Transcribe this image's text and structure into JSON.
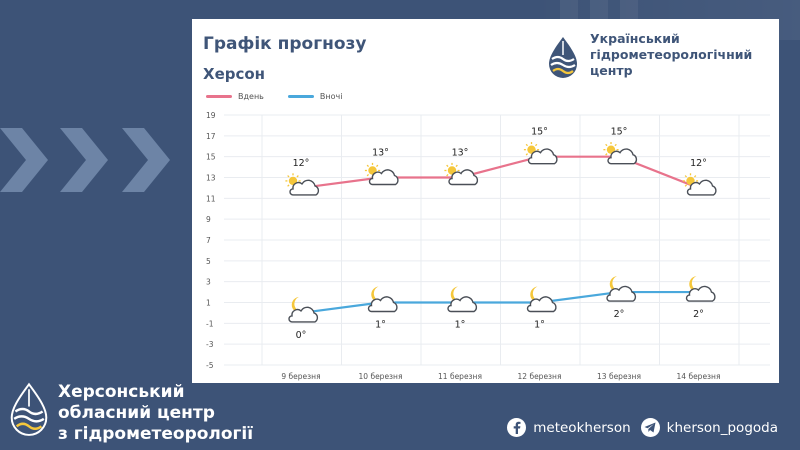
{
  "card": {
    "title": "Графік прогнозу",
    "city": "Херсон",
    "brand_lines": [
      "Український",
      "гідрометеорологічний",
      "центр"
    ]
  },
  "footer": {
    "org_lines": [
      "Херсонський",
      "обласний центр",
      "з гідрометеорології"
    ],
    "facebook": "meteokherson",
    "telegram": "kherson_pogoda"
  },
  "colors": {
    "background": "#3d5377",
    "day_line": "#e8738c",
    "night_line": "#4aa8dc",
    "brand_blue": "#3f5578",
    "sun": "#f5c73b"
  },
  "chart_data": {
    "type": "line",
    "title": "",
    "xlabel": "",
    "ylabel": "",
    "categories": [
      "9 березня",
      "10 березня",
      "11 березня",
      "12 березня",
      "13 березня",
      "14 березня"
    ],
    "y_ticks": [
      19,
      17,
      15,
      13,
      11,
      9,
      7,
      5,
      3,
      1,
      -1,
      -3,
      -5
    ],
    "ylim": [
      -5,
      19
    ],
    "grid": true,
    "legend_position": "top-left",
    "series": [
      {
        "name": "Вдень",
        "values": [
          12,
          13,
          13,
          15,
          15,
          12
        ],
        "labels": [
          "12°",
          "13°",
          "13°",
          "15°",
          "15°",
          "12°"
        ],
        "icons": [
          "sun-cloud-icon",
          "sun-cloud-icon",
          "sun-cloud-icon",
          "sun-cloud-icon",
          "sun-cloud-icon",
          "sun-cloud-icon"
        ]
      },
      {
        "name": "Вночі",
        "values": [
          0,
          1,
          1,
          1,
          2,
          2
        ],
        "labels": [
          "0°",
          "1°",
          "1°",
          "1°",
          "2°",
          "2°"
        ],
        "icons": [
          "moon-cloud-icon",
          "moon-cloud-icon",
          "moon-cloud-icon",
          "moon-cloud-icon",
          "moon-cloud-icon",
          "moon-cloud-icon"
        ]
      }
    ]
  }
}
